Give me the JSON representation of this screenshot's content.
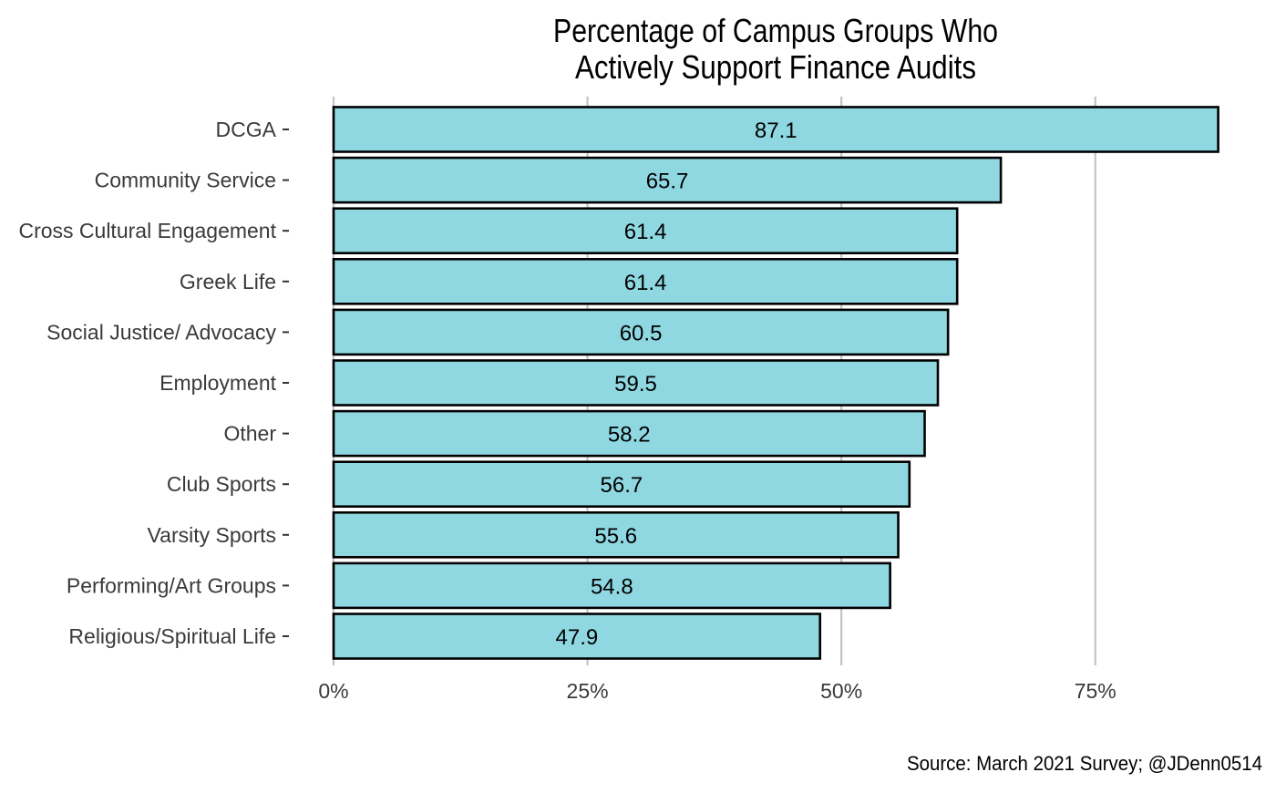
{
  "chart_data": {
    "type": "bar",
    "orientation": "horizontal",
    "title_lines": [
      "Percentage of Campus Groups Who",
      "Actively Support Finance Audits"
    ],
    "caption": "Source: March 2021 Survey; @JDenn0514",
    "categories": [
      "DCGA",
      "Community Service",
      "Cross Cultural Engagement",
      "Greek Life",
      "Social Justice/ Advocacy",
      "Employment",
      "Other",
      "Club Sports",
      "Varsity Sports",
      "Performing/Art Groups",
      "Religious/Spiritual Life"
    ],
    "values": [
      87.1,
      65.7,
      61.4,
      61.4,
      60.5,
      59.5,
      58.2,
      56.7,
      55.6,
      54.8,
      47.9
    ],
    "value_labels": [
      "87.1",
      "65.7",
      "61.4",
      "61.4",
      "60.5",
      "59.5",
      "58.2",
      "56.7",
      "55.6",
      "54.8",
      "47.9"
    ],
    "x_ticks": [
      0,
      25,
      50,
      75
    ],
    "x_tick_labels": [
      "0%",
      "25%",
      "50%",
      "75%"
    ],
    "xlabel": "",
    "ylabel": "",
    "xlim": [
      0,
      87.1
    ],
    "grid": "vertical major gridlines",
    "legend": "none",
    "colors": {
      "bar_fill": "#8fd8e2",
      "bar_stroke": "#000000",
      "grid": "#c4c4c4",
      "axis_text": "#3a3a3a",
      "title": "#000000",
      "background": "#ffffff"
    }
  }
}
